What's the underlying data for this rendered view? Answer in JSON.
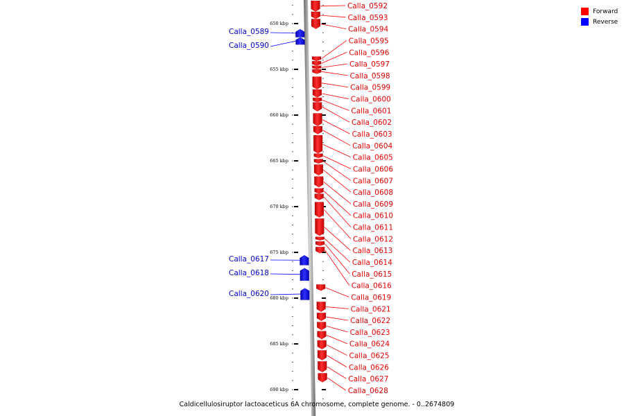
{
  "legend": {
    "forward_label": "Forward",
    "reverse_label": "Reverse",
    "forward_color": "#ff0000",
    "reverse_color": "#0000ff"
  },
  "caption": "Caldicellulosiruptor lactoaceticus 6A chromosome, complete genome. - 0..2674809",
  "ticks": [
    {
      "kbp": 650,
      "label": "650 kbp"
    },
    {
      "kbp": 655,
      "label": "655 kbp"
    },
    {
      "kbp": 660,
      "label": "660 kbp"
    },
    {
      "kbp": 665,
      "label": "665 kbp"
    },
    {
      "kbp": 670,
      "label": "670 kbp"
    },
    {
      "kbp": 675,
      "label": "675 kbp"
    },
    {
      "kbp": 680,
      "label": "680 kbp"
    },
    {
      "kbp": 685,
      "label": "685 kbp"
    },
    {
      "kbp": 690,
      "label": "690 kbp"
    }
  ],
  "genes": [
    {
      "name": "Calla_0589",
      "strand": "reverse",
      "start": 650.6,
      "end": 651.5
    },
    {
      "name": "Calla_0590",
      "strand": "reverse",
      "start": 651.5,
      "end": 652.3
    },
    {
      "name": "Calla_0592",
      "strand": "forward",
      "start": 647.5,
      "end": 648.7
    },
    {
      "name": "Calla_0593",
      "strand": "forward",
      "start": 648.7,
      "end": 649.5
    },
    {
      "name": "Calla_0594",
      "strand": "forward",
      "start": 649.5,
      "end": 650.6
    },
    {
      "name": "Calla_0595",
      "strand": "forward",
      "start": 653.6,
      "end": 654.1
    },
    {
      "name": "Calla_0596",
      "strand": "forward",
      "start": 654.1,
      "end": 654.6
    },
    {
      "name": "Calla_0597",
      "strand": "forward",
      "start": 654.6,
      "end": 655.0
    },
    {
      "name": "Calla_0598",
      "strand": "forward",
      "start": 655.0,
      "end": 655.5
    },
    {
      "name": "Calla_0599",
      "strand": "forward",
      "start": 655.8,
      "end": 657.2
    },
    {
      "name": "Calla_0600",
      "strand": "forward",
      "start": 657.2,
      "end": 658.1
    },
    {
      "name": "Calla_0601",
      "strand": "forward",
      "start": 658.1,
      "end": 658.6
    },
    {
      "name": "Calla_0602",
      "strand": "forward",
      "start": 658.6,
      "end": 659.6
    },
    {
      "name": "Calla_0603",
      "strand": "forward",
      "start": 659.8,
      "end": 661.2
    },
    {
      "name": "Calla_0604",
      "strand": "forward",
      "start": 661.2,
      "end": 662.1
    },
    {
      "name": "Calla_0605",
      "strand": "forward",
      "start": 662.2,
      "end": 664.2
    },
    {
      "name": "Calla_0606",
      "strand": "forward",
      "start": 664.2,
      "end": 664.7
    },
    {
      "name": "Calla_0607",
      "strand": "forward",
      "start": 664.8,
      "end": 665.3
    },
    {
      "name": "Calla_0608",
      "strand": "forward",
      "start": 665.4,
      "end": 666.6
    },
    {
      "name": "Calla_0609",
      "strand": "forward",
      "start": 666.7,
      "end": 667.9
    },
    {
      "name": "Calla_0610",
      "strand": "forward",
      "start": 668.0,
      "end": 668.6
    },
    {
      "name": "Calla_0611",
      "strand": "forward",
      "start": 668.6,
      "end": 669.3
    },
    {
      "name": "Calla_0612",
      "strand": "forward",
      "start": 669.5,
      "end": 671.2
    },
    {
      "name": "Calla_0613",
      "strand": "forward",
      "start": 671.3,
      "end": 673.2
    },
    {
      "name": "Calla_0614",
      "strand": "forward",
      "start": 673.3,
      "end": 673.7
    },
    {
      "name": "Calla_0615",
      "strand": "forward",
      "start": 673.8,
      "end": 674.3
    },
    {
      "name": "Calla_0616",
      "strand": "forward",
      "start": 674.4,
      "end": 675.1
    },
    {
      "name": "Calla_0617",
      "strand": "reverse",
      "start": 675.3,
      "end": 676.4
    },
    {
      "name": "Calla_0618",
      "strand": "reverse",
      "start": 676.7,
      "end": 678.1
    },
    {
      "name": "Calla_0619",
      "strand": "forward",
      "start": 678.5,
      "end": 679.2
    },
    {
      "name": "Calla_0620",
      "strand": "reverse",
      "start": 678.9,
      "end": 680.2
    },
    {
      "name": "Calla_0621",
      "strand": "forward",
      "start": 680.4,
      "end": 681.5
    },
    {
      "name": "Calla_0622",
      "strand": "forward",
      "start": 681.6,
      "end": 682.5
    },
    {
      "name": "Calla_0623",
      "strand": "forward",
      "start": 682.6,
      "end": 683.5
    },
    {
      "name": "Calla_0624",
      "strand": "forward",
      "start": 683.6,
      "end": 684.5
    },
    {
      "name": "Calla_0625",
      "strand": "forward",
      "start": 684.6,
      "end": 685.6
    },
    {
      "name": "Calla_0626",
      "strand": "forward",
      "start": 685.7,
      "end": 686.8
    },
    {
      "name": "Calla_0627",
      "strand": "forward",
      "start": 686.9,
      "end": 688.1
    },
    {
      "name": "Calla_0628",
      "strand": "forward",
      "start": 688.2,
      "end": 689.2
    }
  ]
}
